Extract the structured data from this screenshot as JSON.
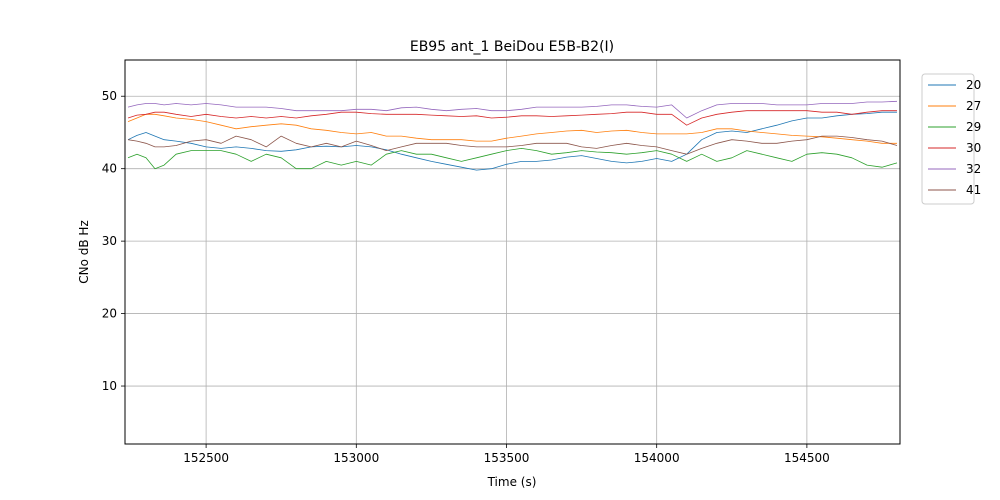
{
  "chart_data": {
    "type": "line",
    "title": "EB95 ant_1 BeiDou E5B-B2(I)",
    "xlabel": "Time (s)",
    "ylabel": "CNo dB Hz",
    "xlim": [
      152230,
      154810
    ],
    "ylim": [
      2,
      55
    ],
    "xticks": [
      152500,
      153000,
      153500,
      154000,
      154500
    ],
    "yticks": [
      10,
      20,
      30,
      40,
      50
    ],
    "grid": true,
    "legend_position": "outside-right",
    "x": [
      152240,
      152270,
      152300,
      152330,
      152360,
      152400,
      152450,
      152500,
      152550,
      152600,
      152650,
      152700,
      152750,
      152800,
      152850,
      152900,
      152950,
      153000,
      153050,
      153100,
      153150,
      153200,
      153250,
      153300,
      153350,
      153400,
      153450,
      153500,
      153550,
      153600,
      153650,
      153700,
      153750,
      153800,
      153850,
      153900,
      153950,
      154000,
      154050,
      154100,
      154150,
      154200,
      154250,
      154300,
      154350,
      154400,
      154450,
      154500,
      154550,
      154600,
      154650,
      154700,
      154750,
      154800
    ],
    "series": [
      {
        "name": "20",
        "color": "#1f77b4",
        "values": [
          44.0,
          44.6,
          45.0,
          44.5,
          44.0,
          43.8,
          43.5,
          43.0,
          42.8,
          43.0,
          42.8,
          42.5,
          42.4,
          42.6,
          43.0,
          43.1,
          43.0,
          43.2,
          43.0,
          42.6,
          42.0,
          41.5,
          41.0,
          40.6,
          40.2,
          39.8,
          40.0,
          40.6,
          41.0,
          41.0,
          41.2,
          41.6,
          41.8,
          41.4,
          41.0,
          40.8,
          41.0,
          41.4,
          41.0,
          42.0,
          44.0,
          45.0,
          45.2,
          45.0,
          45.5,
          46.0,
          46.6,
          47.0,
          47.0,
          47.3,
          47.5,
          47.6,
          47.8,
          47.8
        ]
      },
      {
        "name": "27",
        "color": "#ff7f0e",
        "values": [
          46.5,
          47.0,
          47.5,
          47.5,
          47.3,
          47.0,
          46.8,
          46.5,
          46.0,
          45.5,
          45.8,
          46.0,
          46.2,
          46.0,
          45.5,
          45.3,
          45.0,
          44.8,
          45.0,
          44.5,
          44.5,
          44.2,
          44.0,
          44.0,
          44.0,
          43.8,
          43.8,
          44.2,
          44.5,
          44.8,
          45.0,
          45.2,
          45.3,
          45.0,
          45.2,
          45.3,
          45.0,
          44.8,
          44.8,
          44.8,
          45.0,
          45.5,
          45.5,
          45.2,
          45.0,
          44.8,
          44.6,
          44.5,
          44.4,
          44.2,
          44.0,
          43.8,
          43.5,
          43.5
        ]
      },
      {
        "name": "29",
        "color": "#2ca02c",
        "values": [
          41.5,
          42.0,
          41.5,
          40.0,
          40.5,
          42.0,
          42.5,
          42.5,
          42.5,
          42.0,
          41.0,
          42.0,
          41.5,
          40.0,
          40.0,
          41.0,
          40.5,
          41.0,
          40.5,
          42.0,
          42.5,
          42.0,
          42.0,
          41.5,
          41.0,
          41.5,
          42.0,
          42.5,
          42.8,
          42.5,
          42.0,
          42.2,
          42.5,
          42.3,
          42.2,
          42.0,
          42.2,
          42.5,
          42.0,
          41.0,
          42.0,
          41.0,
          41.5,
          42.5,
          42.0,
          41.5,
          41.0,
          42.0,
          42.2,
          42.0,
          41.5,
          40.5,
          40.2,
          40.8
        ]
      },
      {
        "name": "30",
        "color": "#d62728",
        "values": [
          47.0,
          47.4,
          47.5,
          47.8,
          47.8,
          47.5,
          47.2,
          47.5,
          47.2,
          47.0,
          47.2,
          47.0,
          47.2,
          47.0,
          47.3,
          47.5,
          47.8,
          47.8,
          47.6,
          47.5,
          47.5,
          47.5,
          47.4,
          47.3,
          47.2,
          47.3,
          47.0,
          47.1,
          47.3,
          47.3,
          47.2,
          47.3,
          47.4,
          47.5,
          47.6,
          47.8,
          47.8,
          47.5,
          47.5,
          46.0,
          47.0,
          47.5,
          47.8,
          48.0,
          48.0,
          48.0,
          48.0,
          48.0,
          47.8,
          47.8,
          47.5,
          47.8,
          48.0,
          48.0
        ]
      },
      {
        "name": "32",
        "color": "#9467bd",
        "values": [
          48.5,
          48.8,
          49.0,
          49.0,
          48.8,
          49.0,
          48.8,
          49.0,
          48.8,
          48.5,
          48.5,
          48.5,
          48.3,
          48.0,
          48.0,
          48.0,
          48.0,
          48.2,
          48.2,
          48.0,
          48.4,
          48.5,
          48.2,
          48.0,
          48.2,
          48.3,
          48.0,
          48.0,
          48.2,
          48.5,
          48.5,
          48.5,
          48.5,
          48.6,
          48.8,
          48.8,
          48.6,
          48.5,
          48.8,
          47.0,
          48.0,
          48.8,
          49.0,
          49.0,
          49.0,
          48.8,
          48.8,
          48.8,
          49.0,
          49.0,
          49.0,
          49.2,
          49.2,
          49.3
        ]
      },
      {
        "name": "41",
        "color": "#8c564b",
        "values": [
          44.0,
          43.8,
          43.5,
          43.0,
          43.0,
          43.2,
          43.8,
          44.0,
          43.5,
          44.5,
          44.0,
          43.0,
          44.5,
          43.5,
          43.0,
          43.5,
          43.0,
          43.8,
          43.2,
          42.5,
          43.0,
          43.5,
          43.5,
          43.5,
          43.2,
          43.0,
          43.0,
          43.0,
          43.2,
          43.5,
          43.5,
          43.5,
          43.0,
          42.8,
          43.2,
          43.5,
          43.2,
          43.0,
          42.5,
          42.0,
          42.8,
          43.5,
          44.0,
          43.8,
          43.5,
          43.5,
          43.8,
          44.0,
          44.5,
          44.5,
          44.3,
          44.0,
          43.8,
          43.2
        ]
      }
    ]
  }
}
